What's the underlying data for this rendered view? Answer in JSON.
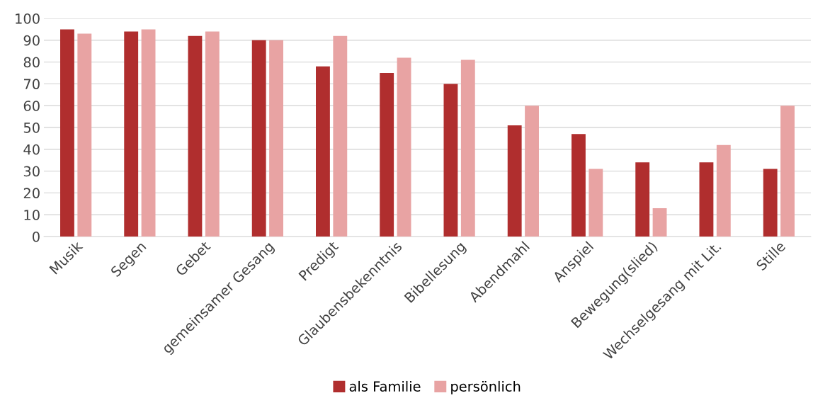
{
  "chart_data": {
    "type": "bar",
    "categories": [
      "Musik",
      "Segen",
      "Gebet",
      "gemeinsamer Gesang",
      "Predigt",
      "Glaubensbekenntnis",
      "Bibellesung",
      "Abendmahl",
      "Anspiel",
      "Bewegung(slied)",
      "Wechselgesang mit Lit.",
      "Stille"
    ],
    "series": [
      {
        "name": "als Familie",
        "color": "#b02e2e",
        "values": [
          95,
          94,
          92,
          90,
          78,
          75,
          70,
          51,
          47,
          34,
          34,
          31
        ]
      },
      {
        "name": "persönlich",
        "color": "#e8a3a3",
        "values": [
          93,
          95,
          94,
          90,
          92,
          82,
          81,
          60,
          31,
          13,
          42,
          60
        ]
      }
    ],
    "ylim": [
      0,
      100
    ],
    "yticks": [
      0,
      10,
      20,
      30,
      40,
      50,
      60,
      70,
      80,
      90,
      100
    ],
    "grid": "y",
    "legend": "bottom"
  }
}
